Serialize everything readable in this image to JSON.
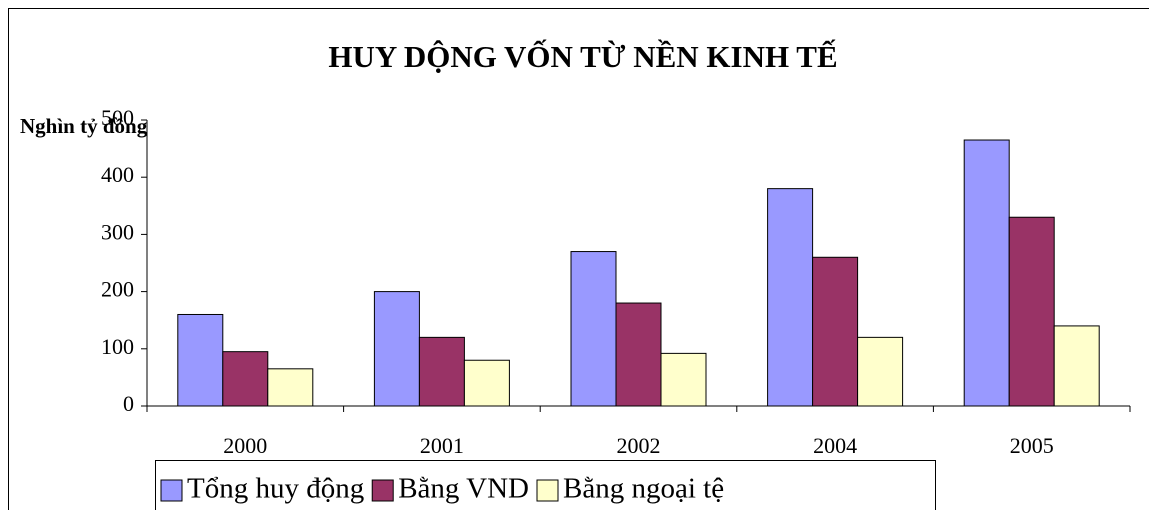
{
  "chart_data": {
    "type": "bar",
    "title": "HUY DỘNG VỐN TỪ NỀN KINH TẾ",
    "y_label": "Nghìn tỷ đồng",
    "categories": [
      "2000",
      "2001",
      "2002",
      "2004",
      "2005"
    ],
    "series": [
      {
        "name": "Tổng huy động",
        "color": "#9999ff",
        "values": [
          160,
          200,
          270,
          380,
          465
        ]
      },
      {
        "name": "Bằng VND",
        "color": "#993366",
        "values": [
          95,
          120,
          180,
          260,
          330
        ]
      },
      {
        "name": "Bằng ngoại tệ",
        "color": "#ffffcc",
        "values": [
          65,
          80,
          92,
          120,
          140
        ]
      }
    ],
    "ylim": [
      0,
      500
    ],
    "yticks": [
      0,
      100,
      200,
      300,
      400,
      500
    ],
    "grid": false,
    "legend": "bottom"
  }
}
